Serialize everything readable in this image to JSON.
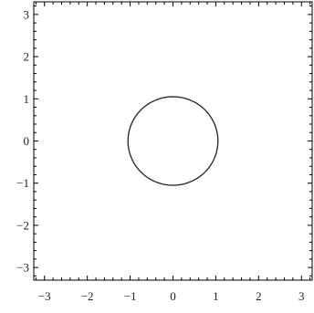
{
  "chart_data": {
    "type": "line",
    "title": "",
    "xlabel": "",
    "ylabel": "",
    "xlim": [
      -3.25,
      3.25
    ],
    "ylim": [
      -3.3,
      3.3
    ],
    "x_ticks": [
      -3,
      -2,
      -1,
      0,
      1,
      2,
      3
    ],
    "y_ticks": [
      -3,
      -2,
      -1,
      0,
      1,
      2,
      3
    ],
    "x_tick_labels": [
      "−3",
      "−2",
      "−1",
      "0",
      "1",
      "2",
      "3"
    ],
    "y_tick_labels": [
      "−3",
      "−2",
      "−1",
      "0",
      "1",
      "2",
      "3"
    ],
    "grid": false,
    "frame": true,
    "series": [
      {
        "shape": "circle",
        "center": [
          0,
          0
        ],
        "radius": 1.05,
        "color": "#222222"
      }
    ]
  }
}
